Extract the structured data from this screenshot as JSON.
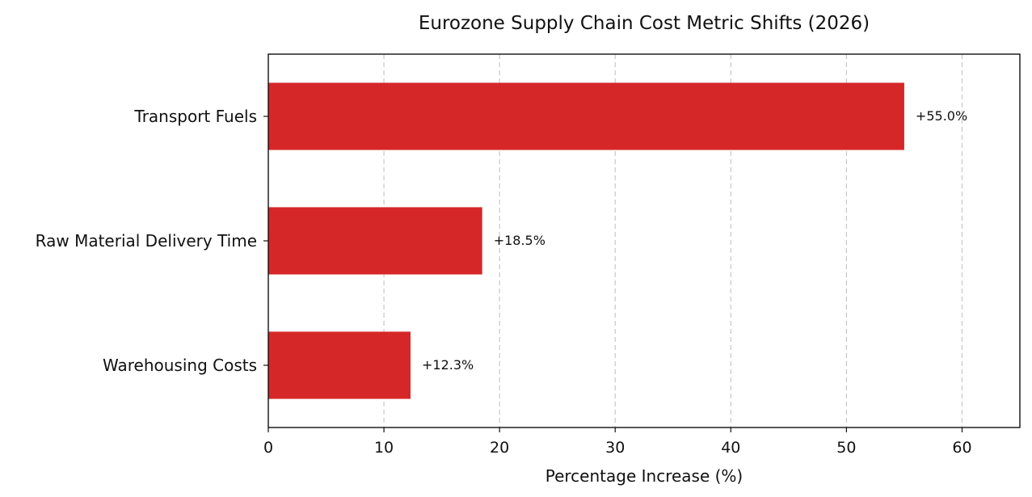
{
  "chart_data": {
    "type": "bar",
    "orientation": "horizontal",
    "title": "Eurozone Supply Chain Cost Metric Shifts (2026)",
    "xlabel": "Percentage Increase (%)",
    "ylabel": "",
    "categories": [
      "Transport Fuels",
      "Raw Material Delivery Time",
      "Warehousing Costs"
    ],
    "values": [
      55.0,
      18.5,
      12.3
    ],
    "data_labels": [
      "+55.0%",
      "+18.5%",
      "+12.3%"
    ],
    "xlim": [
      0,
      65
    ],
    "xticks": [
      0,
      10,
      20,
      30,
      40,
      50,
      60
    ],
    "grid": {
      "x": true,
      "y": false,
      "style": "dashed"
    },
    "legend": "none",
    "colors": {
      "bar": "#d62728",
      "grid": "#c8c8c8",
      "axis": "#111111"
    }
  }
}
